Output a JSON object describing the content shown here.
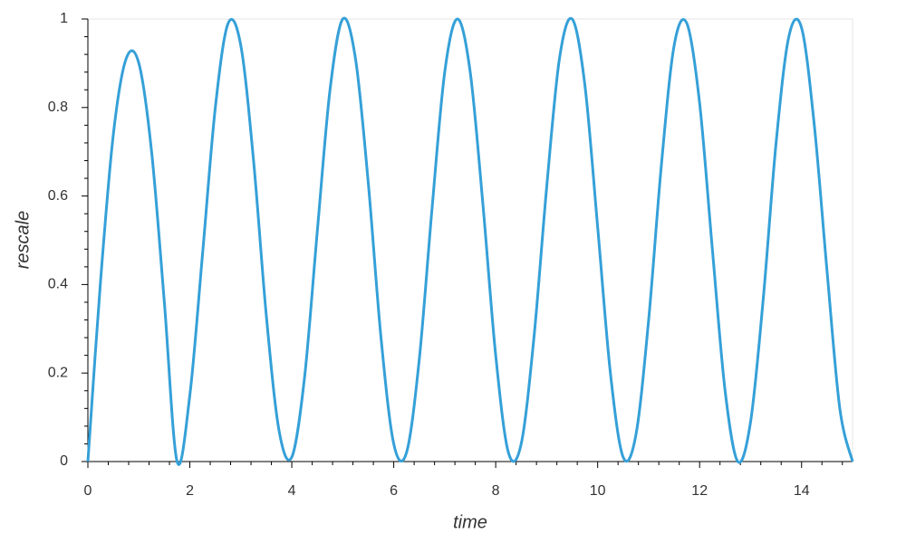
{
  "chart_data": {
    "type": "line",
    "xlabel": "time",
    "ylabel": "rescale",
    "x": [
      0,
      0.25,
      0.5,
      0.75,
      1,
      1.25,
      1.5,
      1.75,
      2,
      2.25,
      2.5,
      2.75,
      3,
      3.25,
      3.5,
      3.75,
      4,
      4.25,
      4.5,
      4.75,
      5,
      5.25,
      5.5,
      5.75,
      6,
      6.25,
      6.5,
      6.75,
      7,
      7.25,
      7.5,
      7.75,
      8,
      8.25,
      8.5,
      8.75,
      9,
      9.25,
      9.5,
      9.75,
      10,
      10.25,
      10.5,
      10.75,
      11,
      11.25,
      11.5,
      11.75,
      12,
      12.25,
      12.5,
      12.75,
      13,
      13.25,
      13.5,
      13.75,
      14,
      14.25,
      14.5,
      14.75,
      15
    ],
    "values": [
      0,
      0.41,
      0.74,
      0.91,
      0.9,
      0.7,
      0.36,
      0.0,
      0.15,
      0.47,
      0.8,
      0.99,
      0.94,
      0.68,
      0.33,
      0.07,
      0.01,
      0.19,
      0.52,
      0.84,
      1.0,
      0.91,
      0.63,
      0.28,
      0.04,
      0.02,
      0.23,
      0.57,
      0.88,
      1.0,
      0.88,
      0.58,
      0.24,
      0.02,
      0.04,
      0.28,
      0.62,
      0.91,
      1.0,
      0.85,
      0.53,
      0.2,
      0.01,
      0.06,
      0.32,
      0.67,
      0.94,
      0.99,
      0.81,
      0.48,
      0.16,
      0.0,
      0.09,
      0.37,
      0.72,
      0.96,
      0.98,
      0.76,
      0.43,
      0.12,
      0
    ],
    "color": "#35a0d8",
    "xlim": [
      0,
      15
    ],
    "xticks": [
      0,
      2,
      4,
      6,
      8,
      10,
      12,
      14
    ],
    "ylim": [
      0,
      1
    ],
    "yticks": [
      0,
      0.2,
      0.4,
      0.6,
      0.8,
      1
    ]
  }
}
